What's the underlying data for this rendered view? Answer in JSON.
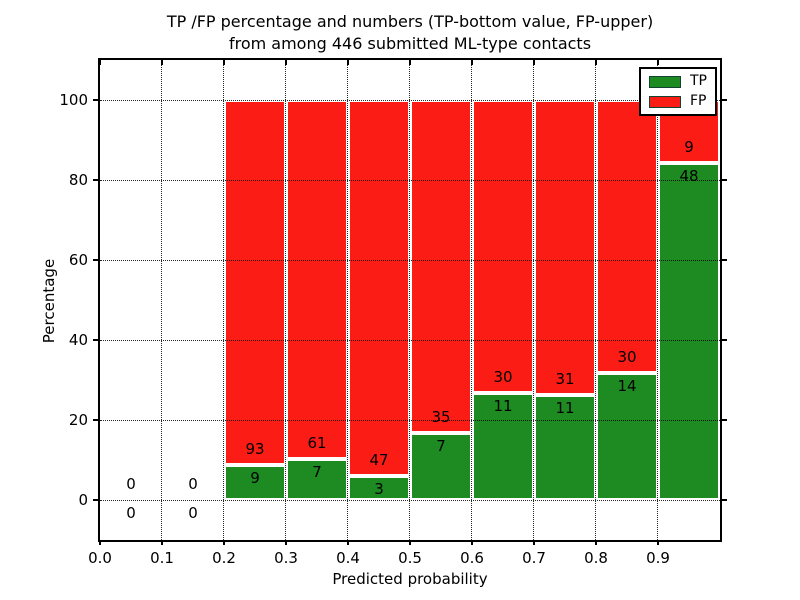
{
  "figure": {
    "title_line1": "TP /FP percentage and numbers (TP-bottom value, FP-upper)",
    "title_line2": "from among 446 submitted ML-type contacts"
  },
  "axes": {
    "xlabel": "Predicted probability",
    "ylabel": "Percentage"
  },
  "legend": {
    "items": [
      {
        "label": "TP",
        "color": "#1e8b22"
      },
      {
        "label": "FP",
        "color": "#fb1d15"
      }
    ]
  },
  "chart_data": {
    "type": "bar",
    "stacked": true,
    "title": "TP /FP percentage and numbers (TP-bottom value, FP-upper) from among 446 submitted ML-type contacts",
    "xlabel": "Predicted probability",
    "ylabel": "Percentage",
    "xlim": [
      0.0,
      1.0
    ],
    "ylim": [
      -10,
      110
    ],
    "grid": "dotted-black, drawn above bars",
    "legend_position": "upper right",
    "bin_starts": [
      0.0,
      0.1,
      0.2,
      0.3,
      0.4,
      0.5,
      0.6,
      0.7,
      0.8,
      0.9
    ],
    "bin_width": 0.1,
    "x_tick_labels": [
      "0.0",
      "0.1",
      "0.2",
      "0.3",
      "0.4",
      "0.5",
      "0.6",
      "0.7",
      "0.8",
      "0.9"
    ],
    "y_tick_values": [
      0,
      20,
      40,
      60,
      80,
      100
    ],
    "y_tick_labels": [
      "0",
      "20",
      "40",
      "60",
      "80",
      "100"
    ],
    "series": [
      {
        "name": "TP",
        "color": "#1e8b22",
        "counts": [
          0,
          0,
          9,
          7,
          3,
          7,
          11,
          11,
          14,
          48
        ],
        "percent": [
          0,
          0,
          8.82,
          10.29,
          6.0,
          16.67,
          26.83,
          26.19,
          31.82,
          84.21
        ]
      },
      {
        "name": "FP",
        "color": "#fb1d15",
        "counts": [
          0,
          0,
          93,
          61,
          47,
          35,
          30,
          31,
          30,
          9
        ],
        "percent": [
          0,
          0,
          91.18,
          89.71,
          94.0,
          83.33,
          73.17,
          73.81,
          68.18,
          15.79
        ]
      }
    ],
    "bar_edge_color": "#ffffff",
    "annotation_note": "FP count printed above top of TP segment, TP count printed below it; bins 0.0 and 0.1 show 0 / 0 around the zero line"
  }
}
